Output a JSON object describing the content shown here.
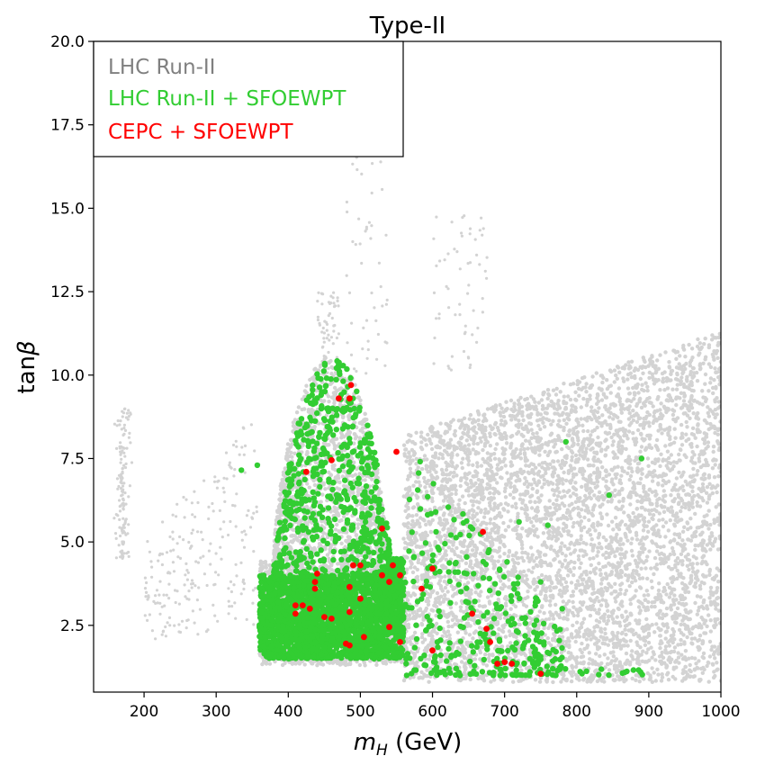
{
  "chart_data": {
    "type": "scatter",
    "title": "Type-II",
    "xlabel": "m_H (GeV)",
    "xlabel_italic": "m",
    "xlabel_sub": "H",
    "xlabel_rest": " (GeV)",
    "ylabel": "tanβ",
    "ylabel_pre": "tan",
    "ylabel_greek": "β",
    "xlim": [
      130,
      1000
    ],
    "ylim": [
      0.5,
      20.0
    ],
    "xticks": [
      200,
      300,
      400,
      500,
      600,
      700,
      800,
      900,
      1000
    ],
    "xtick_labels": [
      "200",
      "300",
      "400",
      "500",
      "600",
      "700",
      "800",
      "900",
      "1000"
    ],
    "yticks": [
      2.5,
      5.0,
      7.5,
      10.0,
      12.5,
      15.0,
      17.5,
      20.0
    ],
    "ytick_labels": [
      "2.5",
      "5.0",
      "7.5",
      "10.0",
      "12.5",
      "15.0",
      "17.5",
      "20.0"
    ],
    "grid": false,
    "legend_position": "top-left",
    "series": [
      {
        "name": "LHC Run-II",
        "color": "#d3d3d3",
        "regions": [
          {
            "kind": "wedge",
            "x": [
              560,
              1000
            ],
            "y_low": 0.8,
            "y_high_start": 8.2,
            "y_high_end": 11.3
          },
          {
            "kind": "band",
            "x": [
              360,
              560
            ],
            "y_low": 1.3,
            "y_high": 4.5
          },
          {
            "kind": "hump",
            "x": [
              380,
              560
            ],
            "y_low": 4.5,
            "y_peak": 10.6
          },
          {
            "kind": "strip",
            "x": [
              150,
              200
            ],
            "y": [
              4.5,
              9.0
            ]
          },
          {
            "kind": "scatter",
            "x": [
              200,
              360
            ],
            "y": [
              2.0,
              8.5
            ]
          },
          {
            "kind": "spike",
            "x": [
              480,
              540
            ],
            "y": [
              10.0,
              19.8
            ]
          },
          {
            "kind": "spike",
            "x": [
              600,
              680
            ],
            "y": [
              10.0,
              15.0
            ]
          },
          {
            "kind": "spike",
            "x": [
              440,
              470
            ],
            "y": [
              10.0,
              12.5
            ]
          }
        ]
      },
      {
        "name": "LHC Run-II + SFOEWPT",
        "color": "#32cd32",
        "regions": [
          {
            "kind": "dense",
            "x": [
              360,
              560
            ],
            "y": [
              1.5,
              4.0
            ]
          },
          {
            "kind": "cloud",
            "x": [
              380,
              560
            ],
            "y": [
              4.0,
              10.5
            ]
          },
          {
            "kind": "cloud",
            "x": [
              560,
              780
            ],
            "y": [
              1.0,
              8.0
            ]
          },
          {
            "kind": "tail",
            "x": [
              780,
              910
            ],
            "y": [
              1.0,
              1.2
            ]
          }
        ],
        "extra_points": [
          [
            335,
            7.15
          ],
          [
            357,
            7.3
          ],
          [
            785,
            8.0
          ],
          [
            890,
            7.5
          ],
          [
            845,
            6.4
          ],
          [
            780,
            3.0
          ],
          [
            750,
            3.8
          ],
          [
            720,
            5.6
          ],
          [
            760,
            5.5
          ]
        ]
      },
      {
        "name": "CEPC + SFOEWPT",
        "color": "#ff0000",
        "points": [
          [
            470,
            9.3
          ],
          [
            485,
            9.3
          ],
          [
            487,
            9.7
          ],
          [
            425,
            7.1
          ],
          [
            460,
            7.45
          ],
          [
            550,
            7.7
          ],
          [
            530,
            5.4
          ],
          [
            670,
            5.3
          ],
          [
            440,
            4.05
          ],
          [
            437,
            3.8
          ],
          [
            437,
            3.6
          ],
          [
            485,
            3.65
          ],
          [
            490,
            4.3
          ],
          [
            500,
            4.3
          ],
          [
            545,
            4.3
          ],
          [
            530,
            4.0
          ],
          [
            555,
            4.0
          ],
          [
            540,
            3.8
          ],
          [
            585,
            3.6
          ],
          [
            600,
            4.2
          ],
          [
            410,
            3.1
          ],
          [
            420,
            3.1
          ],
          [
            430,
            3.0
          ],
          [
            410,
            2.85
          ],
          [
            450,
            2.75
          ],
          [
            460,
            2.7
          ],
          [
            485,
            2.9
          ],
          [
            500,
            3.3
          ],
          [
            540,
            2.45
          ],
          [
            555,
            2.0
          ],
          [
            480,
            1.95
          ],
          [
            485,
            1.9
          ],
          [
            505,
            2.15
          ],
          [
            600,
            1.75
          ],
          [
            655,
            2.85
          ],
          [
            675,
            2.4
          ],
          [
            680,
            2.0
          ],
          [
            690,
            1.35
          ],
          [
            700,
            1.4
          ],
          [
            710,
            1.35
          ],
          [
            750,
            1.05
          ]
        ]
      }
    ]
  }
}
